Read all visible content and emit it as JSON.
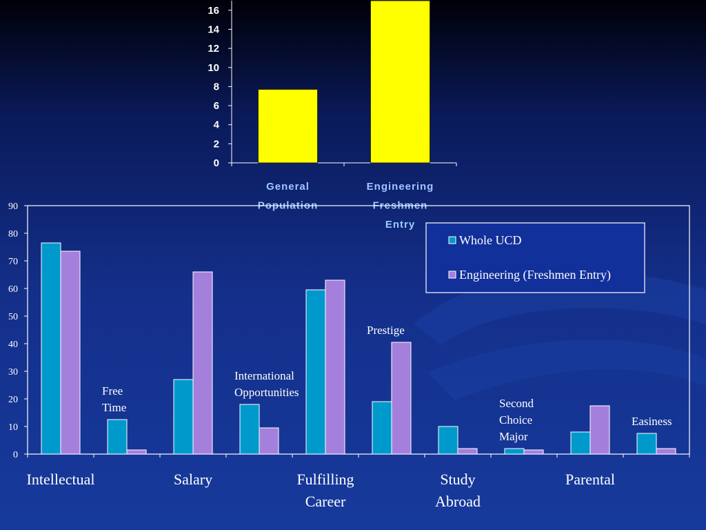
{
  "chart_data": [
    {
      "type": "bar",
      "title": "",
      "categories": [
        "General Population",
        "Engineering Freshmen Entry"
      ],
      "category_lines": [
        [
          "General",
          "Population"
        ],
        [
          "Engineering",
          "Freshmen",
          "Entry"
        ]
      ],
      "values": [
        7.7,
        17.0
      ],
      "yticks": [
        "0",
        "2",
        "4",
        "6",
        "8",
        "10",
        "12",
        "14",
        "16"
      ],
      "ylim": [
        0,
        17
      ],
      "bar_color": "#FFFF00",
      "label_color": "#9EC8FF"
    },
    {
      "type": "bar",
      "title": "",
      "ylim": [
        0,
        90
      ],
      "yticks": [
        "0",
        "10",
        "20",
        "30",
        "40",
        "50",
        "60",
        "70",
        "80",
        "90"
      ],
      "categories": [
        "Intellectual",
        "Free Time",
        "Salary",
        "International Opportunities",
        "Fulfilling Career",
        "Prestige",
        "Study Abroad",
        "Second Choice Major",
        "Parental",
        "Easiness"
      ],
      "series": [
        {
          "name": "Whole UCD",
          "color": "#0099CC",
          "values": [
            76.5,
            12.5,
            27,
            18,
            59.5,
            19,
            10,
            2,
            8,
            7.5
          ]
        },
        {
          "name": "Engineering (Freshmen Entry)",
          "color": "#A57FDC",
          "values": [
            73.5,
            1.5,
            66,
            9.5,
            63,
            40.5,
            2,
            1.5,
            17.5,
            2
          ]
        }
      ],
      "bottom_labels": [
        {
          "index": 0,
          "lines": [
            "Intellectual"
          ]
        },
        {
          "index": 2,
          "lines": [
            "Salary"
          ]
        },
        {
          "index": 4,
          "lines": [
            "Fulfilling",
            "Career"
          ]
        },
        {
          "index": 6,
          "lines": [
            "Study",
            "Abroad"
          ]
        },
        {
          "index": 8,
          "lines": [
            "Parental"
          ]
        }
      ],
      "inline_labels": [
        {
          "index": 1,
          "lines": [
            "Free",
            "Time"
          ]
        },
        {
          "index": 3,
          "lines": [
            "International",
            "Opportunities"
          ]
        },
        {
          "index": 5,
          "lines": [
            "Prestige"
          ]
        },
        {
          "index": 7,
          "lines": [
            "Second",
            "Choice",
            "Major"
          ]
        },
        {
          "index": 9,
          "lines": [
            "Easiness"
          ]
        }
      ],
      "legend": [
        "Whole UCD",
        "Engineering (Freshmen Entry)"
      ],
      "legend_position": "top-right"
    }
  ]
}
